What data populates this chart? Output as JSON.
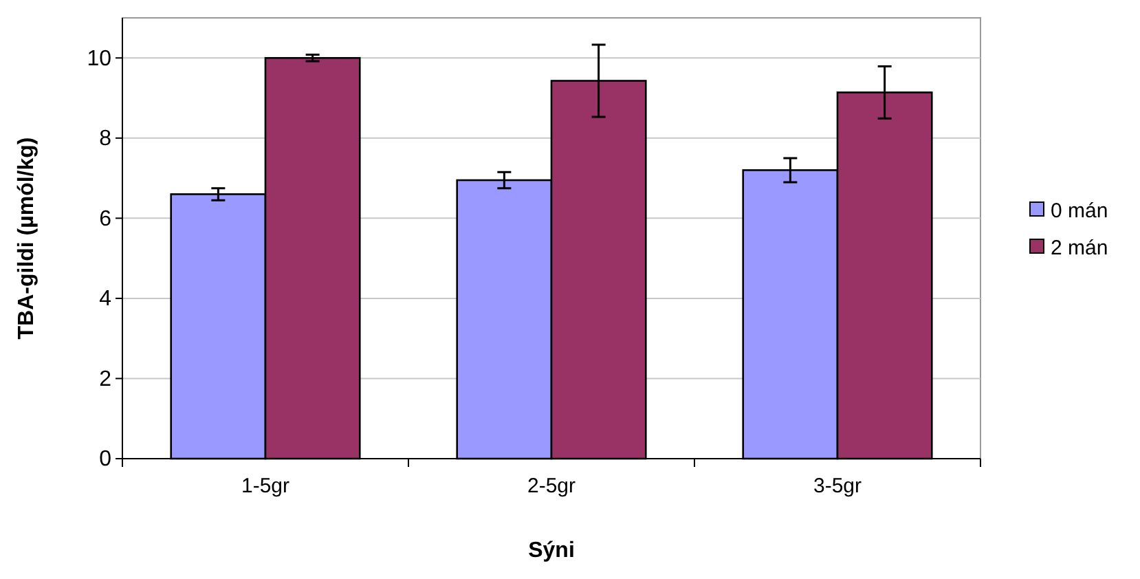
{
  "chart_data": {
    "type": "bar",
    "xlabel": "Sýni",
    "ylabel": "TBA-gildi (µmól/kg)",
    "categories": [
      "1-5gr",
      "2-5gr",
      "3-5gr"
    ],
    "series": [
      {
        "name": "0 mán",
        "color": "#9999ff",
        "values": [
          6.6,
          6.95,
          7.2
        ],
        "errors": [
          0.15,
          0.2,
          0.3
        ]
      },
      {
        "name": "2 mán",
        "color": "#993366",
        "values": [
          10.0,
          9.43,
          9.14
        ],
        "errors": [
          0.08,
          0.9,
          0.65
        ]
      }
    ],
    "ylim": [
      0,
      11
    ],
    "yticks": [
      0,
      2,
      4,
      6,
      8,
      10
    ],
    "grid": "y",
    "legend": "right"
  }
}
